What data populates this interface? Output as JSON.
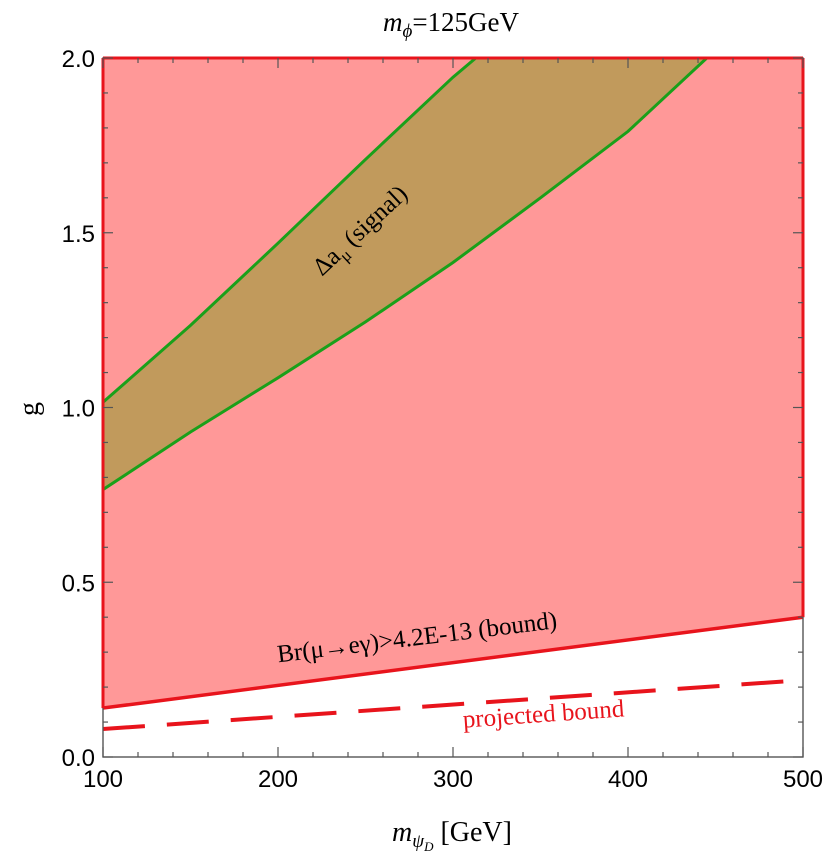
{
  "chart_data": {
    "type": "area",
    "title": {
      "main": "m",
      "sub": "ϕ",
      "rest": "=125GeV"
    },
    "xlabel": {
      "main": "m",
      "sub": "ψ",
      "subsub": "D",
      "rest": " [GeV]"
    },
    "ylabel": "g",
    "xlim": [
      100,
      500
    ],
    "ylim": [
      0.0,
      2.0
    ],
    "x_ticks": [
      100,
      200,
      300,
      400,
      500
    ],
    "x_tick_labels": [
      "100",
      "200",
      "300",
      "400",
      "500"
    ],
    "y_ticks": [
      0.0,
      0.5,
      1.0,
      1.5,
      2.0
    ],
    "y_tick_labels": [
      "0.0",
      "0.5",
      "1.0",
      "1.5",
      "2.0"
    ],
    "colors": {
      "excluded_fill": "#ff9898",
      "bound_line": "#e8141c",
      "signal_fill": "#c19a5c",
      "signal_line": "#1aa01a",
      "frame": "#555555"
    },
    "series": [
      {
        "key": "bound",
        "x": [
          100,
          500
        ],
        "y": [
          0.14,
          0.4
        ]
      },
      {
        "key": "projected",
        "x": [
          100,
          500
        ],
        "y": [
          0.08,
          0.22
        ]
      },
      {
        "key": "signal_upper",
        "x": [
          100,
          150,
          200,
          250,
          300,
          313
        ],
        "y": [
          1.015,
          1.235,
          1.47,
          1.71,
          1.945,
          2.0
        ]
      },
      {
        "key": "signal_lower",
        "x": [
          100,
          150,
          200,
          250,
          300,
          350,
          400,
          445
        ],
        "y": [
          0.765,
          0.93,
          1.085,
          1.245,
          1.415,
          1.6,
          1.79,
          2.0
        ]
      }
    ],
    "annotations": {
      "signal": {
        "main": "Δa",
        "sub": "μ",
        "rest": " (signal)",
        "x": 250,
        "y": 1.49,
        "rotate_deg": -43
      },
      "bound": {
        "text": "Br(μ→eγ)>4.2E-13 (bound)",
        "x": 280,
        "y": 0.32,
        "rotate_deg": -7
      },
      "projected": {
        "text": "projected bound",
        "x": 352,
        "y": 0.1,
        "rotate_deg": -4
      }
    }
  }
}
